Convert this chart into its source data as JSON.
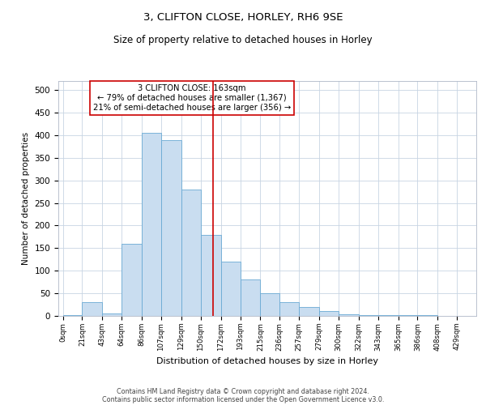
{
  "title1": "3, CLIFTON CLOSE, HORLEY, RH6 9SE",
  "title2": "Size of property relative to detached houses in Horley",
  "xlabel": "Distribution of detached houses by size in Horley",
  "ylabel": "Number of detached properties",
  "footer1": "Contains HM Land Registry data © Crown copyright and database right 2024.",
  "footer2": "Contains public sector information licensed under the Open Government Licence v3.0.",
  "annotation_line1": "3 CLIFTON CLOSE: 163sqm",
  "annotation_line2": "← 79% of detached houses are smaller (1,367)",
  "annotation_line3": "21% of semi-detached houses are larger (356) →",
  "marker_x": 163,
  "bar_left_edges": [
    0,
    21,
    43,
    64,
    86,
    107,
    129,
    150,
    172,
    193,
    215,
    236,
    257,
    279,
    300,
    322,
    343,
    365,
    386,
    408
  ],
  "bar_widths": [
    21,
    22,
    21,
    22,
    21,
    22,
    21,
    22,
    21,
    22,
    21,
    21,
    22,
    21,
    22,
    21,
    22,
    21,
    22,
    21
  ],
  "bar_heights": [
    2,
    30,
    5,
    160,
    405,
    390,
    280,
    180,
    120,
    80,
    50,
    30,
    20,
    10,
    3,
    2,
    1,
    1,
    1,
    0
  ],
  "tick_labels": [
    "0sqm",
    "21sqm",
    "43sqm",
    "64sqm",
    "86sqm",
    "107sqm",
    "129sqm",
    "150sqm",
    "172sqm",
    "193sqm",
    "215sqm",
    "236sqm",
    "257sqm",
    "279sqm",
    "300sqm",
    "322sqm",
    "343sqm",
    "365sqm",
    "386sqm",
    "408sqm",
    "429sqm"
  ],
  "tick_positions": [
    0,
    21,
    43,
    64,
    86,
    107,
    129,
    150,
    172,
    193,
    215,
    236,
    257,
    279,
    300,
    322,
    343,
    365,
    386,
    408,
    429
  ],
  "bar_color": "#c9ddf0",
  "bar_edge_color": "#6aaad4",
  "marker_color": "#cc0000",
  "annotation_box_edge": "#cc0000",
  "background_color": "#ffffff",
  "grid_color": "#c8d4e3",
  "ylim": [
    0,
    520
  ],
  "yticks": [
    0,
    50,
    100,
    150,
    200,
    250,
    300,
    350,
    400,
    450,
    500
  ],
  "xlim_left": -5,
  "xlim_right": 450
}
